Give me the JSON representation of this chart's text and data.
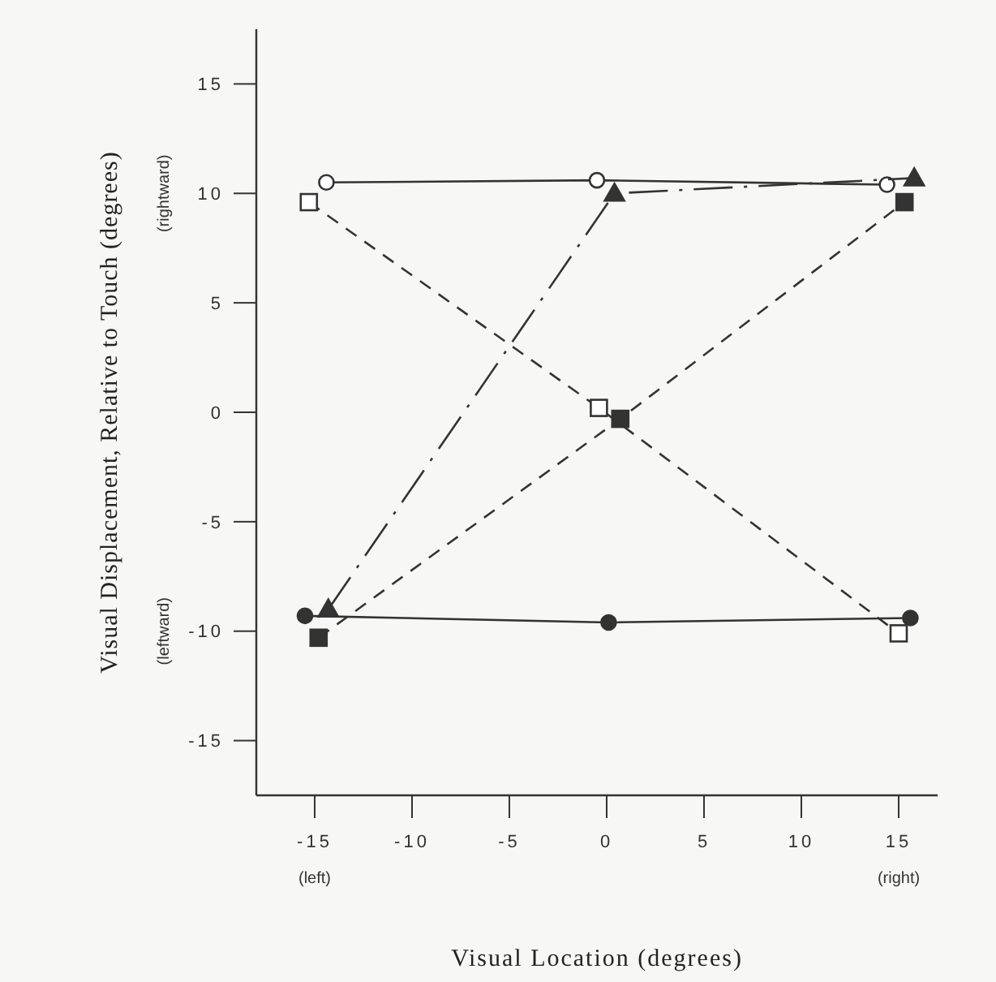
{
  "chart_data": {
    "type": "line",
    "xlabel": "Visual Location (degrees)",
    "ylabel": "Visual Displacement, Relative to Touch (degrees)",
    "xlim": [
      -18,
      17
    ],
    "ylim": [
      -17.5,
      17.5
    ],
    "xticks": [
      {
        "value": -15,
        "label": "-15"
      },
      {
        "value": -10,
        "label": "-10"
      },
      {
        "value": -5,
        "label": "-5"
      },
      0,
      5,
      10,
      15
    ],
    "yticks": [
      {
        "value": -15,
        "label": "-15"
      },
      {
        "value": -10,
        "label": "-10"
      },
      {
        "value": -5,
        "label": "-5"
      },
      0,
      5,
      10,
      15
    ],
    "grid": false,
    "annotations": [
      "(left)",
      "(right)",
      "(rightward)",
      "(leftward)"
    ],
    "series": [
      {
        "color": "#333333",
        "x": [
          -14.4,
          -0.5,
          14.4
        ],
        "values": [
          10.5,
          10.6,
          10.4
        ],
        "colors": [
          "#ffffff",
          "#ffffff",
          "#ffffff"
        ],
        "marker": "circle",
        "line_style": "solid"
      },
      {
        "color": "#333333",
        "x": [
          -15.5,
          0.1,
          15.6
        ],
        "values": [
          -9.3,
          -9.6,
          -9.4
        ],
        "marker": "circle",
        "line_style": "solid"
      },
      {
        "color": "#333333",
        "x": [
          -15.3,
          -0.4,
          15
        ],
        "values": [
          9.6,
          0.2,
          -10.1
        ],
        "colors": [
          "#ffffff",
          "#ffffff",
          "#ffffff"
        ],
        "marker": "square",
        "line_style": "dashed"
      },
      {
        "color": "#333333",
        "x": [
          -14.8,
          0.7,
          15.3
        ],
        "values": [
          -10.3,
          -0.3,
          9.6
        ],
        "marker": "square",
        "line_style": "dashed"
      },
      {
        "color": "#333333",
        "x": [
          -14.3,
          0.4,
          15.8
        ],
        "values": [
          -9.0,
          10.0,
          10.7
        ],
        "marker": "triangle",
        "line_style": "dashdot"
      }
    ]
  }
}
